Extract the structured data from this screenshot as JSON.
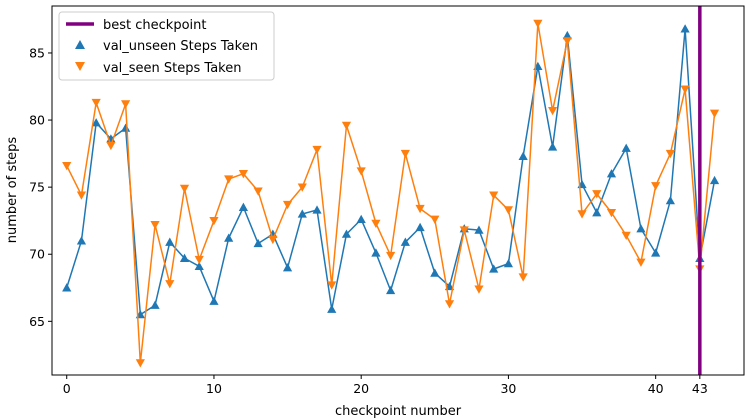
{
  "chart_data": {
    "type": "line",
    "xlabel": "checkpoint number",
    "ylabel": "number of steps",
    "xlim": [
      -1,
      46
    ],
    "ylim": [
      61,
      88.5
    ],
    "xticks": [
      0,
      10,
      20,
      30,
      40,
      43
    ],
    "yticks": [
      65,
      70,
      75,
      80,
      85
    ],
    "grid": false,
    "legend_position": "top-left",
    "best_checkpoint": {
      "name": "best checkpoint",
      "x": 43,
      "color": "#800080"
    },
    "series": [
      {
        "name": "val_unseen Steps Taken",
        "color": "#1f77b4",
        "marker": "triangle-up",
        "x": [
          0,
          1,
          2,
          3,
          4,
          5,
          6,
          7,
          8,
          9,
          10,
          11,
          12,
          13,
          14,
          15,
          16,
          17,
          18,
          19,
          20,
          21,
          22,
          23,
          24,
          25,
          26,
          27,
          28,
          29,
          30,
          31,
          32,
          33,
          34,
          35,
          36,
          37,
          38,
          39,
          40,
          41,
          42,
          43,
          44
        ],
        "values": [
          67.5,
          71.0,
          79.8,
          78.6,
          79.4,
          65.5,
          66.2,
          70.9,
          69.7,
          69.1,
          66.5,
          71.2,
          73.5,
          70.8,
          71.5,
          69.0,
          73.0,
          73.3,
          65.9,
          71.5,
          72.6,
          70.1,
          67.3,
          70.9,
          72.0,
          68.6,
          67.6,
          71.9,
          71.8,
          68.9,
          69.3,
          77.3,
          84.0,
          78.0,
          86.3,
          75.2,
          73.1,
          76.0,
          77.9,
          71.9,
          70.1,
          74.0,
          86.8,
          69.7,
          75.5
        ]
      },
      {
        "name": "val_seen Steps Taken",
        "color": "#ff7f0e",
        "marker": "triangle-down",
        "x": [
          0,
          1,
          2,
          3,
          4,
          5,
          6,
          7,
          8,
          9,
          10,
          11,
          12,
          13,
          14,
          15,
          16,
          17,
          18,
          19,
          20,
          21,
          22,
          23,
          24,
          25,
          26,
          27,
          28,
          29,
          30,
          31,
          32,
          33,
          34,
          35,
          36,
          37,
          38,
          39,
          40,
          41,
          42,
          43,
          44
        ],
        "values": [
          76.6,
          74.4,
          81.3,
          78.1,
          81.2,
          61.9,
          72.2,
          67.8,
          74.9,
          69.6,
          72.5,
          75.6,
          76.0,
          74.7,
          71.1,
          73.7,
          75.0,
          77.8,
          67.7,
          79.6,
          76.2,
          72.3,
          69.9,
          77.5,
          73.4,
          72.6,
          66.3,
          71.8,
          67.4,
          74.4,
          73.3,
          68.3,
          87.2,
          80.7,
          85.9,
          73.0,
          74.5,
          73.1,
          71.4,
          69.4,
          75.1,
          77.5,
          82.3,
          68.9,
          80.5
        ]
      }
    ]
  }
}
